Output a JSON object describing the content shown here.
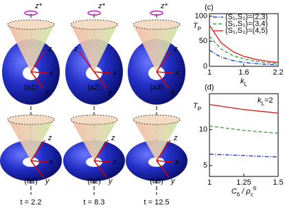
{
  "figure": {
    "axis_symbol": "z*",
    "panels": [
      {
        "label": "(a1)",
        "z": "z",
        "y": "y",
        "x": "x"
      },
      {
        "label": "(a2)",
        "z": "z",
        "y": "y",
        "x": "x"
      },
      {
        "label": "(a3)",
        "z": "z",
        "y": "y",
        "x": "x"
      },
      {
        "label": "(b1)",
        "z": "z",
        "y": "y",
        "x": "x"
      },
      {
        "label": "(b2)",
        "z": "z",
        "y": "y",
        "x": "x"
      },
      {
        "label": "(b3)",
        "z": "z",
        "y": "y",
        "x": "x"
      }
    ],
    "times": [
      "t = 2.2",
      "t = 8.3",
      "t = 12.5"
    ]
  },
  "chart_data": [
    {
      "type": "line",
      "panel_label": "(c)",
      "xlabel": [
        "k",
        "L"
      ],
      "ylabel": [
        "T",
        "P"
      ],
      "x": [
        1,
        1.2,
        1.4,
        1.6,
        1.8,
        2.0,
        2.2
      ],
      "series": [
        {
          "name": "(S₁,S₂)=(2,3)",
          "color": "#1f3fcf",
          "dash": "dashdot",
          "values": [
            32,
            18.5,
            11.7,
            7.8,
            5.5,
            4.0,
            3.0
          ]
        },
        {
          "name": "(S₁,S₂)=(3,4)",
          "color": "#3aa83a",
          "dash": "dashed",
          "values": [
            60,
            34.7,
            21.9,
            14.6,
            10.3,
            7.5,
            5.6
          ]
        },
        {
          "name": "(S₁,S₂)=(4,5)",
          "color": "#e02020",
          "dash": "solid",
          "values": [
            82,
            47.5,
            29.9,
            20.0,
            14.1,
            10.3,
            7.7
          ]
        }
      ],
      "xlim": [
        1,
        2.2
      ],
      "xticks": [
        1,
        1.6,
        2.2
      ],
      "ylim": [
        0,
        105
      ],
      "yticks": [
        0,
        50,
        100
      ]
    },
    {
      "type": "line",
      "panel_label": "(d)",
      "annotation": [
        "k",
        "L",
        "=2"
      ],
      "xlabel": [
        "C",
        "6",
        " / ρ",
        "c",
        "6"
      ],
      "ylabel": [
        "T",
        "P"
      ],
      "x": [
        1,
        1.25,
        1.5
      ],
      "series": [
        {
          "name": "(S₁,S₂)=(2,3)",
          "color": "#1f3fcf",
          "dash": "dashdot",
          "values": [
            6.6,
            6.4,
            6.2
          ]
        },
        {
          "name": "(S₁,S₂)=(3,4)",
          "color": "#3aa83a",
          "dash": "dashed",
          "values": [
            10.5,
            9.9,
            9.5
          ]
        },
        {
          "name": "(S₁,S₂)=(4,5)",
          "color": "#e02020",
          "dash": "solid",
          "values": [
            13.5,
            12.8,
            12.3
          ]
        }
      ],
      "xlim": [
        1,
        1.5
      ],
      "xticks": [
        1,
        1.25,
        1.5
      ],
      "ylim": [
        3.5,
        15
      ],
      "yticks": [
        5,
        10
      ]
    }
  ]
}
